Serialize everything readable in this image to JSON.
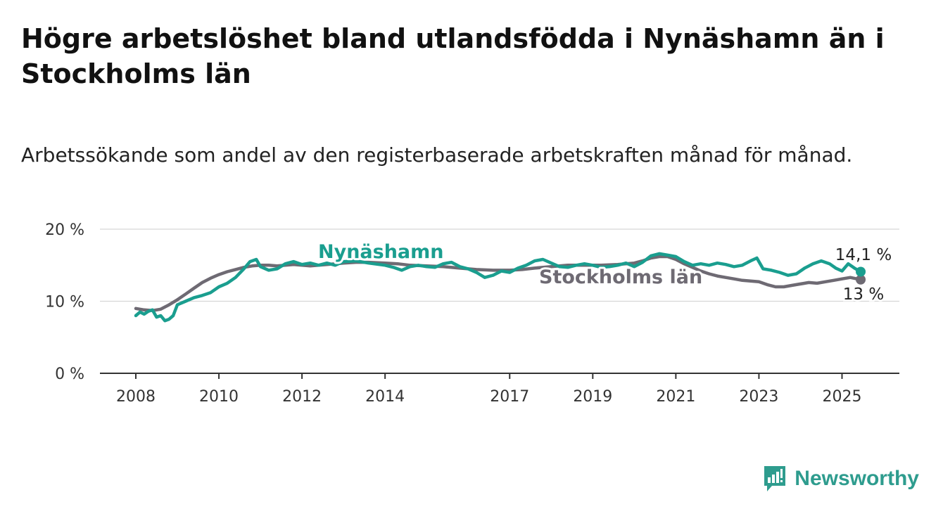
{
  "header": {
    "title": "Högre arbetslöshet bland utlandsfödda i Nynäshamn än i Stockholms län",
    "subtitle": "Arbetssökande som andel av den registerbaserade arbetskraften månad för månad."
  },
  "brand": {
    "name": "Newsworthy",
    "color": "#2e9c8e"
  },
  "chart_data": {
    "type": "line",
    "title": "",
    "xlabel": "",
    "ylabel": "",
    "xlim": [
      2008,
      2025.5
    ],
    "ylim": [
      0,
      20
    ],
    "grid": true,
    "x_ticks": [
      2008,
      2010,
      2012,
      2014,
      2017,
      2019,
      2021,
      2023,
      2025
    ],
    "y_ticks": [
      {
        "value": 0,
        "label": "0 %"
      },
      {
        "value": 10,
        "label": "10 %"
      },
      {
        "value": 20,
        "label": "20 %"
      }
    ],
    "series": [
      {
        "name": "Stockholms län",
        "color": "#6e6a73",
        "end_label": "13 %",
        "x": [
          2008.0,
          2008.2,
          2008.4,
          2008.6,
          2008.8,
          2009.0,
          2009.2,
          2009.4,
          2009.6,
          2009.8,
          2010.0,
          2010.2,
          2010.4,
          2010.6,
          2010.8,
          2011.0,
          2011.2,
          2011.4,
          2011.6,
          2011.8,
          2012.0,
          2012.2,
          2012.4,
          2012.6,
          2012.8,
          2013.0,
          2013.3,
          2013.6,
          2014.0,
          2014.3,
          2014.6,
          2015.0,
          2015.4,
          2015.8,
          2016.2,
          2016.6,
          2017.0,
          2017.3,
          2017.6,
          2018.0,
          2018.4,
          2018.8,
          2019.2,
          2019.6,
          2020.0,
          2020.2,
          2020.4,
          2020.6,
          2020.8,
          2021.0,
          2021.2,
          2021.4,
          2021.6,
          2021.8,
          2022.0,
          2022.2,
          2022.4,
          2022.6,
          2022.8,
          2023.0,
          2023.2,
          2023.4,
          2023.6,
          2023.8,
          2024.0,
          2024.2,
          2024.4,
          2024.6,
          2024.8,
          2025.0,
          2025.2,
          2025.45
        ],
        "values": [
          9.0,
          8.8,
          8.7,
          8.9,
          9.5,
          10.2,
          11.0,
          11.8,
          12.6,
          13.2,
          13.7,
          14.1,
          14.4,
          14.7,
          14.9,
          15.0,
          15.0,
          14.9,
          15.0,
          15.1,
          15.0,
          14.9,
          15.0,
          15.1,
          15.2,
          15.3,
          15.4,
          15.4,
          15.3,
          15.2,
          15.0,
          14.9,
          14.8,
          14.6,
          14.4,
          14.3,
          14.3,
          14.4,
          14.6,
          14.8,
          15.0,
          15.0,
          15.0,
          15.1,
          15.3,
          15.6,
          16.0,
          16.2,
          16.2,
          15.8,
          15.2,
          14.7,
          14.2,
          13.8,
          13.5,
          13.3,
          13.1,
          12.9,
          12.8,
          12.7,
          12.3,
          12.0,
          12.0,
          12.2,
          12.4,
          12.6,
          12.5,
          12.7,
          12.9,
          13.1,
          13.3,
          13.0
        ]
      },
      {
        "name": "Nynäshamn",
        "color": "#1a9e8f",
        "end_label": "14,1 %",
        "x": [
          2008.0,
          2008.1,
          2008.2,
          2008.3,
          2008.4,
          2008.5,
          2008.6,
          2008.7,
          2008.8,
          2008.9,
          2009.0,
          2009.2,
          2009.4,
          2009.6,
          2009.8,
          2010.0,
          2010.2,
          2010.4,
          2010.6,
          2010.75,
          2010.9,
          2011.0,
          2011.2,
          2011.4,
          2011.6,
          2011.8,
          2012.0,
          2012.2,
          2012.4,
          2012.6,
          2012.8,
          2013.0,
          2013.3,
          2013.6,
          2014.0,
          2014.2,
          2014.4,
          2014.6,
          2014.8,
          2015.0,
          2015.2,
          2015.4,
          2015.6,
          2015.8,
          2016.0,
          2016.2,
          2016.4,
          2016.6,
          2016.8,
          2017.0,
          2017.2,
          2017.4,
          2017.6,
          2017.8,
          2018.0,
          2018.2,
          2018.4,
          2018.6,
          2018.8,
          2019.0,
          2019.2,
          2019.4,
          2019.6,
          2019.8,
          2020.0,
          2020.2,
          2020.4,
          2020.6,
          2020.8,
          2021.0,
          2021.2,
          2021.4,
          2021.6,
          2021.8,
          2022.0,
          2022.2,
          2022.4,
          2022.6,
          2022.8,
          2022.95,
          2023.1,
          2023.3,
          2023.5,
          2023.7,
          2023.9,
          2024.1,
          2024.3,
          2024.5,
          2024.7,
          2024.85,
          2025.0,
          2025.15,
          2025.3,
          2025.45
        ],
        "values": [
          8.0,
          8.5,
          8.2,
          8.6,
          8.8,
          7.8,
          8.0,
          7.3,
          7.5,
          8.0,
          9.5,
          10.0,
          10.5,
          10.8,
          11.2,
          12.0,
          12.5,
          13.3,
          14.5,
          15.5,
          15.8,
          14.8,
          14.3,
          14.5,
          15.2,
          15.5,
          15.1,
          15.3,
          15.0,
          15.3,
          15.0,
          15.5,
          15.6,
          15.3,
          15.0,
          14.7,
          14.3,
          14.8,
          15.0,
          14.8,
          14.7,
          15.2,
          15.4,
          14.8,
          14.5,
          14.0,
          13.3,
          13.6,
          14.2,
          14.0,
          14.6,
          15.0,
          15.6,
          15.8,
          15.3,
          14.8,
          14.7,
          15.0,
          15.2,
          15.0,
          14.7,
          14.8,
          15.0,
          15.3,
          14.8,
          15.4,
          16.3,
          16.6,
          16.4,
          16.2,
          15.5,
          15.0,
          15.2,
          15.0,
          15.3,
          15.1,
          14.8,
          15.0,
          15.6,
          16.0,
          14.5,
          14.3,
          14.0,
          13.6,
          13.8,
          14.6,
          15.2,
          15.6,
          15.2,
          14.6,
          14.2,
          15.2,
          14.6,
          14.1
        ]
      }
    ]
  }
}
